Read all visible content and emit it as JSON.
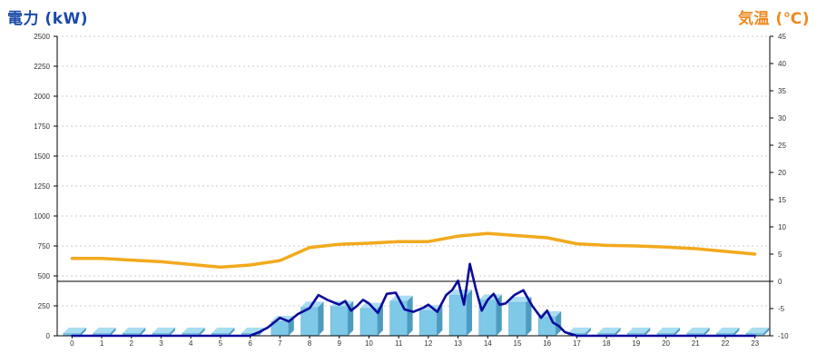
{
  "chart_data": {
    "type": "bar",
    "title_left": "電力 (kW)",
    "title_right": "気温 (℃)",
    "colors": {
      "left_title": "#1a4aa8",
      "right_title": "#f08a1e",
      "power_bar": "#7ec8e8",
      "power_line": "#0a0a9a",
      "temperature_line": "#f2a91c",
      "grid": "#bbbbbb"
    },
    "x_labels": [
      "0",
      "1",
      "2",
      "3",
      "4",
      "5",
      "6",
      "7",
      "8",
      "9",
      "10",
      "11",
      "12",
      "13",
      "14",
      "15",
      "16",
      "17",
      "18",
      "19",
      "20",
      "21",
      "22",
      "23"
    ],
    "left_axis": {
      "min": 0,
      "max": 2500,
      "ticks": [
        "0",
        "250",
        "500",
        "750",
        "1000",
        "1250",
        "1500",
        "1750",
        "2000",
        "2250",
        "2500"
      ]
    },
    "right_axis": {
      "min": -10,
      "max": 45,
      "ticks": [
        "-10",
        "-5",
        "0",
        "5",
        "10",
        "15",
        "20",
        "25",
        "30",
        "35",
        "40",
        "45"
      ]
    },
    "reference_line_temp": 0,
    "series": [
      {
        "kind": "bar",
        "axis": "left",
        "values": [
          0,
          0,
          0,
          0,
          0,
          0,
          0,
          120,
          240,
          245,
          230,
          290,
          210,
          340,
          300,
          280,
          160,
          0,
          0,
          0,
          0,
          0,
          0,
          0
        ]
      },
      {
        "kind": "line",
        "axis": "left",
        "x": [
          0,
          1,
          2,
          3,
          4,
          5,
          6,
          6.3,
          6.6,
          7,
          7.3,
          7.6,
          8,
          8.3,
          8.6,
          9,
          9.2,
          9.4,
          9.6,
          9.8,
          10,
          10.3,
          10.6,
          10.9,
          11.2,
          11.5,
          11.8,
          12,
          12.3,
          12.6,
          12.8,
          13,
          13.2,
          13.4,
          13.6,
          13.8,
          14,
          14.2,
          14.4,
          14.6,
          14.9,
          15.2,
          15.5,
          15.8,
          16,
          16.2,
          16.4,
          16.6,
          17,
          18,
          19,
          20,
          21,
          22,
          23
        ],
        "y": [
          0,
          0,
          0,
          0,
          0,
          0,
          0,
          30,
          70,
          150,
          120,
          180,
          230,
          340,
          300,
          260,
          290,
          210,
          250,
          300,
          270,
          190,
          350,
          360,
          220,
          200,
          230,
          260,
          200,
          340,
          380,
          460,
          260,
          600,
          390,
          210,
          300,
          350,
          260,
          270,
          340,
          380,
          250,
          150,
          210,
          110,
          80,
          30,
          0,
          0,
          0,
          0,
          0,
          0,
          0
        ]
      },
      {
        "kind": "line",
        "axis": "right",
        "x": [
          0,
          1,
          2,
          3,
          4,
          5,
          6,
          7,
          8,
          9,
          10,
          11,
          12,
          13,
          14,
          15,
          16,
          17,
          18,
          19,
          20,
          21,
          22,
          23
        ],
        "y": [
          4.2,
          4.2,
          3.9,
          3.6,
          3.1,
          2.6,
          3.0,
          3.8,
          6.2,
          6.8,
          7.0,
          7.3,
          7.3,
          8.3,
          8.8,
          8.4,
          8.0,
          6.9,
          6.6,
          6.5,
          6.3,
          6.0,
          5.5,
          5.0
        ]
      }
    ]
  }
}
